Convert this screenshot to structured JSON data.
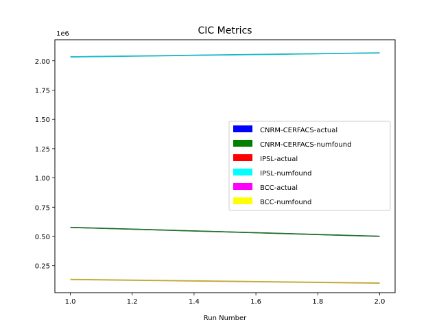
{
  "chart_data": {
    "type": "line",
    "title": "CIC Metrics",
    "xlabel": "Run Number",
    "ylabel": "",
    "y_offset_label": "1e6",
    "xlim": [
      0.95,
      2.05
    ],
    "ylim": [
      0.02,
      2.18
    ],
    "x_ticks": [
      1.0,
      1.2,
      1.4,
      1.6,
      1.8,
      2.0
    ],
    "x_tick_labels": [
      "1.0",
      "1.2",
      "1.4",
      "1.6",
      "1.8",
      "2.0"
    ],
    "y_ticks": [
      0.25,
      0.5,
      0.75,
      1.0,
      1.25,
      1.5,
      1.75,
      2.0
    ],
    "y_tick_labels": [
      "0.25",
      "0.50",
      "0.75",
      "1.00",
      "1.25",
      "1.50",
      "1.75",
      "2.00"
    ],
    "legend_position": "center-right",
    "series": [
      {
        "name": "CNRM-CERFACS-actual",
        "legend_color": "#0000ff",
        "line_color": "#1f77b4",
        "x": [
          1.0,
          2.0
        ],
        "y": [
          0.578,
          0.502
        ]
      },
      {
        "name": "CNRM-CERFACS-numfound",
        "legend_color": "#008000",
        "line_color": "#1f6f1f",
        "x": [
          1.0,
          2.0
        ],
        "y": [
          0.577,
          0.501
        ]
      },
      {
        "name": "IPSL-actual",
        "legend_color": "#ff0000",
        "line_color": "#2ca0a0",
        "x": [
          1.0,
          2.0
        ],
        "y": [
          2.034,
          2.068
        ]
      },
      {
        "name": "IPSL-numfound",
        "legend_color": "#00ffff",
        "line_color": "#17becf",
        "x": [
          1.0,
          2.0
        ],
        "y": [
          2.033,
          2.067
        ]
      },
      {
        "name": "BCC-actual",
        "legend_color": "#ff00ff",
        "line_color": "#bcbd22",
        "x": [
          1.0,
          2.0
        ],
        "y": [
          0.134,
          0.103
        ]
      },
      {
        "name": "BCC-numfound",
        "legend_color": "#ffff00",
        "line_color": "#c7a640",
        "x": [
          1.0,
          2.0
        ],
        "y": [
          0.132,
          0.101
        ]
      }
    ]
  }
}
